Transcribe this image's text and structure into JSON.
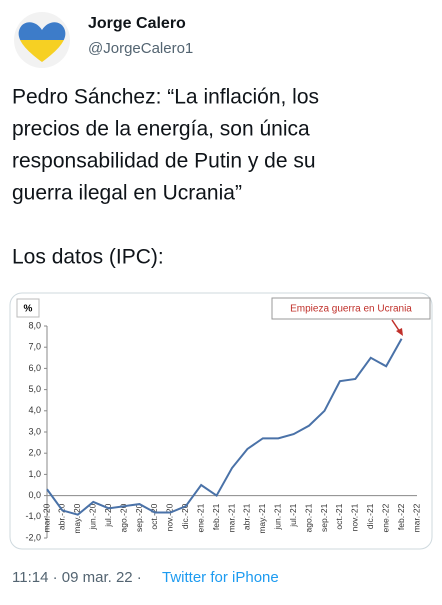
{
  "tweet": {
    "name": "Jorge Calero",
    "handle": "@JorgeCalero1",
    "text_lines": [
      "Pedro Sánchez: “La inflación, los",
      "precios de la energía, son única",
      "responsabilidad de Putin y de su",
      "guerra ilegal en Ucrania”"
    ],
    "text_after": "Los datos (IPC):",
    "timestamp": "11:14 · 09 mar. 22 ·",
    "source": "Twitter for iPhone"
  },
  "chart_data": {
    "type": "line",
    "y_label": "%",
    "annotation": "Empieza guerra en Ucrania",
    "categories": [
      "mar.-20",
      "abr.-20",
      "may.-20",
      "jun.-20",
      "jul.-20",
      "ago.-20",
      "sep.-20",
      "oct.-20",
      "nov.-20",
      "dic.-20",
      "ene.-21",
      "feb.-21",
      "mar.-21",
      "abr.-21",
      "may.-21",
      "jun.-21",
      "jul.-21",
      "ago.-21",
      "sep.-21",
      "oct.-21",
      "nov.-21",
      "dic.-21",
      "ene.-22",
      "feb.-22",
      "mar.-22"
    ],
    "series": [
      {
        "name": "IPC",
        "color": "#4a72a8",
        "values": [
          0.3,
          -0.7,
          -0.9,
          -0.3,
          -0.6,
          -0.5,
          -0.4,
          -0.8,
          -0.8,
          -0.5,
          0.5,
          0.0,
          1.3,
          2.2,
          2.7,
          2.7,
          2.9,
          3.3,
          4.0,
          5.4,
          5.5,
          6.5,
          6.1,
          7.4,
          null
        ]
      }
    ],
    "ylim": [
      -2,
      8
    ],
    "yticks": [
      {
        "value": -2,
        "label": "-2,0"
      },
      {
        "value": -1,
        "label": "-1,0"
      },
      {
        "value": 0,
        "label": "0,0"
      },
      {
        "value": 1,
        "label": "1,0"
      },
      {
        "value": 2,
        "label": "2,0"
      },
      {
        "value": 3,
        "label": "3,0"
      },
      {
        "value": 4,
        "label": "4,0"
      },
      {
        "value": 5,
        "label": "5,0"
      },
      {
        "value": 6,
        "label": "6,0"
      },
      {
        "value": 7,
        "label": "7,0"
      },
      {
        "value": 8,
        "label": "8,0"
      }
    ],
    "grid": false
  }
}
